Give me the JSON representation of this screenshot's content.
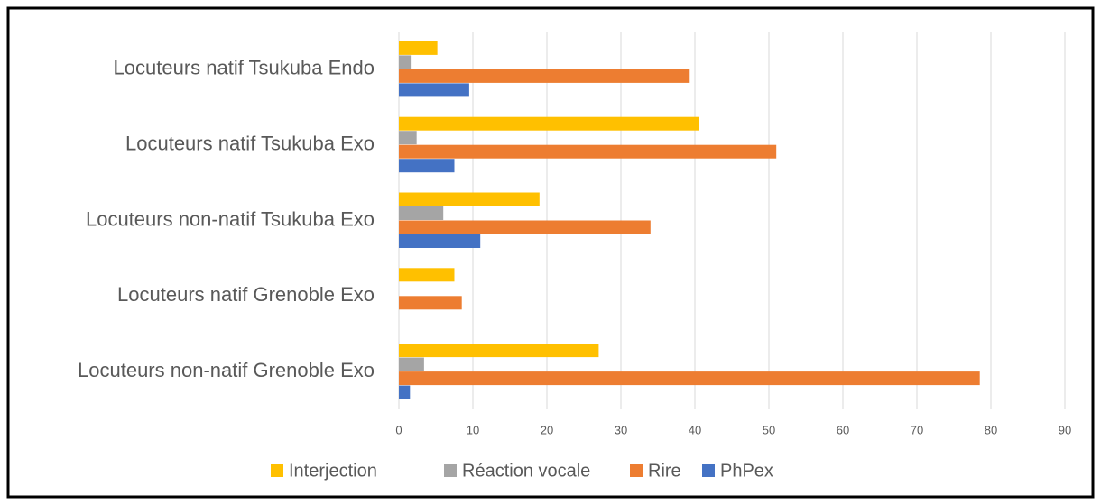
{
  "chart_data": {
    "type": "bar",
    "orientation": "horizontal",
    "categories": [
      "Locuteurs natif  Tsukuba Endo",
      "Locuteurs natif  Tsukuba Exo",
      "Locuteurs non-natif  Tsukuba Exo",
      "Locuteurs natif Grenoble Exo",
      "Locuteurs non-natif Grenoble Exo"
    ],
    "series": [
      {
        "name": "Interjection",
        "color": "#ffc000",
        "values": [
          5.2,
          40.5,
          19,
          7.5,
          27
        ]
      },
      {
        "name": "Réaction vocale",
        "color": "#a5a5a5",
        "values": [
          1.6,
          2.4,
          6,
          0,
          3.4
        ]
      },
      {
        "name": "Rire",
        "color": "#ed7d31",
        "values": [
          39.3,
          51,
          34,
          8.5,
          78.5
        ]
      },
      {
        "name": "PhPex",
        "color": "#4472c4",
        "values": [
          9.5,
          7.5,
          11,
          0,
          1.5
        ]
      }
    ],
    "xlim": [
      0,
      90
    ],
    "xticks": [
      0,
      10,
      20,
      30,
      40,
      50,
      60,
      70,
      80,
      90
    ],
    "grid": true,
    "legend": "bottom"
  }
}
